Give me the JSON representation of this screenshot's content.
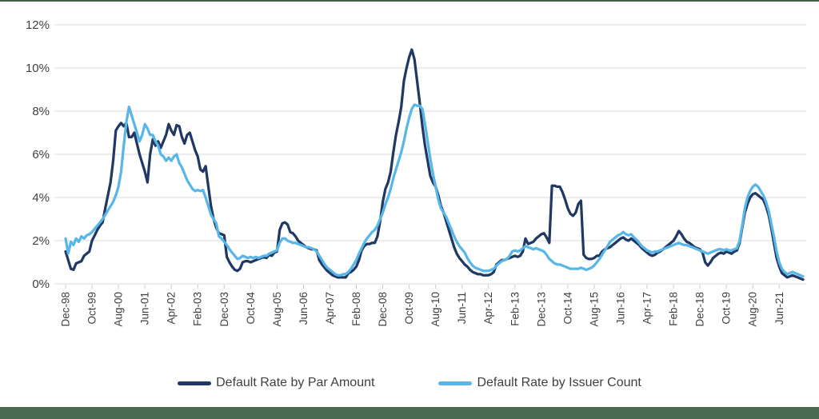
{
  "theme": {
    "background": "#ffffff",
    "top_border_color": "#40604a",
    "bottom_bar_color": "#4a6b52",
    "text_color": "#404040",
    "gridline_color": "#d9d9d9",
    "tick_color": "#c9c9c9"
  },
  "chart_data": {
    "type": "line",
    "title": "",
    "xlabel": "",
    "ylabel": "",
    "legend_position": "bottom",
    "grid": "horizontal-only",
    "x_axis": {
      "frequency": "monthly",
      "start_label": "Dec-98",
      "end_label": "Mar-22",
      "tick_interval_months": 10,
      "tick_labels": [
        "Dec-98",
        "Oct-99",
        "Aug-00",
        "Jun-01",
        "Apr-02",
        "Feb-03",
        "Dec-03",
        "Oct-04",
        "Aug-05",
        "Jun-06",
        "Apr-07",
        "Feb-08",
        "Dec-08",
        "Oct-09",
        "Aug-10",
        "Jun-11",
        "Apr-12",
        "Feb-13",
        "Dec-13",
        "Oct-14",
        "Aug-15",
        "Jun-16",
        "Apr-17",
        "Feb-18",
        "Dec-18",
        "Oct-19",
        "Aug-20",
        "Jun-21"
      ]
    },
    "y_axis": {
      "min": 0,
      "max": 12,
      "tick_step": 2,
      "tick_labels": [
        "0%",
        "2%",
        "4%",
        "6%",
        "8%",
        "10%",
        "12%"
      ]
    },
    "series": [
      {
        "name": "Default Rate by Par Amount",
        "color": "#1f3864",
        "values": [
          1.5,
          1.1,
          0.7,
          0.65,
          0.95,
          1.0,
          1.05,
          1.3,
          1.4,
          1.5,
          2.0,
          2.25,
          2.5,
          2.7,
          2.85,
          3.5,
          4.1,
          4.7,
          5.7,
          7.1,
          7.3,
          7.45,
          7.3,
          7.45,
          6.8,
          6.8,
          7.0,
          6.5,
          6.0,
          5.6,
          5.2,
          4.7,
          6.0,
          6.7,
          6.4,
          6.6,
          6.3,
          6.6,
          6.9,
          7.4,
          7.1,
          6.9,
          7.35,
          7.3,
          6.8,
          6.5,
          6.9,
          7.0,
          6.6,
          6.2,
          5.9,
          5.3,
          5.2,
          5.45,
          4.5,
          3.6,
          3.0,
          2.6,
          2.35,
          2.3,
          2.25,
          1.25,
          1.0,
          0.8,
          0.65,
          0.6,
          0.7,
          1.0,
          1.05,
          1.05,
          1.0,
          1.05,
          1.1,
          1.15,
          1.2,
          1.25,
          1.2,
          1.35,
          1.3,
          1.45,
          1.5,
          2.5,
          2.8,
          2.85,
          2.75,
          2.4,
          2.35,
          2.2,
          2.0,
          1.9,
          1.8,
          1.7,
          1.65,
          1.6,
          1.6,
          1.55,
          1.1,
          0.9,
          0.75,
          0.6,
          0.5,
          0.4,
          0.35,
          0.3,
          0.3,
          0.3,
          0.3,
          0.5,
          0.55,
          0.65,
          0.8,
          1.1,
          1.55,
          1.75,
          1.85,
          1.85,
          1.9,
          1.9,
          2.2,
          2.9,
          3.8,
          4.4,
          4.7,
          5.2,
          6.1,
          6.9,
          7.5,
          8.2,
          9.4,
          10.0,
          10.5,
          10.85,
          10.4,
          9.4,
          8.4,
          7.3,
          6.4,
          5.7,
          5.0,
          4.7,
          4.5,
          4.1,
          3.6,
          3.3,
          2.9,
          2.5,
          2.1,
          1.7,
          1.4,
          1.2,
          1.05,
          0.9,
          0.8,
          0.65,
          0.55,
          0.5,
          0.45,
          0.45,
          0.4,
          0.4,
          0.4,
          0.45,
          0.55,
          0.9,
          1.0,
          1.1,
          1.1,
          1.15,
          1.2,
          1.25,
          1.3,
          1.25,
          1.3,
          1.5,
          2.1,
          1.85,
          1.9,
          1.95,
          2.1,
          2.2,
          2.3,
          2.35,
          2.15,
          1.9,
          4.55,
          4.55,
          4.5,
          4.5,
          4.25,
          3.9,
          3.5,
          3.25,
          3.15,
          3.3,
          3.7,
          3.85,
          1.35,
          1.2,
          1.15,
          1.15,
          1.2,
          1.3,
          1.3,
          1.5,
          1.6,
          1.65,
          1.7,
          1.8,
          1.9,
          2.0,
          2.1,
          2.15,
          2.05,
          2.0,
          2.1,
          2.0,
          1.9,
          1.8,
          1.65,
          1.55,
          1.45,
          1.35,
          1.3,
          1.35,
          1.45,
          1.5,
          1.6,
          1.7,
          1.8,
          1.9,
          2.0,
          2.2,
          2.45,
          2.3,
          2.1,
          1.95,
          1.9,
          1.8,
          1.7,
          1.65,
          1.6,
          1.45,
          1.0,
          0.85,
          1.0,
          1.2,
          1.3,
          1.4,
          1.45,
          1.4,
          1.5,
          1.45,
          1.4,
          1.5,
          1.55,
          1.9,
          2.6,
          3.3,
          3.7,
          4.0,
          4.15,
          4.2,
          4.1,
          4.0,
          3.9,
          3.6,
          3.2,
          2.6,
          1.9,
          1.2,
          0.8,
          0.5,
          0.4,
          0.3,
          0.35,
          0.4,
          0.35,
          0.3,
          0.25,
          0.2
        ]
      },
      {
        "name": "Default Rate by Issuer Count",
        "color": "#58b6e8",
        "values": [
          2.1,
          1.4,
          1.95,
          1.8,
          2.1,
          1.95,
          2.2,
          2.1,
          2.25,
          2.3,
          2.4,
          2.55,
          2.7,
          2.85,
          3.0,
          3.2,
          3.4,
          3.6,
          3.8,
          4.1,
          4.5,
          5.2,
          6.4,
          7.5,
          8.2,
          7.8,
          7.4,
          7.0,
          6.6,
          6.9,
          7.4,
          7.2,
          6.9,
          6.9,
          6.6,
          6.4,
          6.0,
          5.9,
          5.7,
          5.85,
          5.7,
          5.9,
          6.0,
          5.6,
          5.4,
          5.1,
          4.8,
          4.6,
          4.4,
          4.3,
          4.35,
          4.3,
          4.35,
          4.0,
          3.6,
          3.2,
          3.0,
          2.8,
          2.2,
          2.1,
          1.95,
          1.8,
          1.6,
          1.45,
          1.3,
          1.15,
          1.2,
          1.3,
          1.25,
          1.2,
          1.25,
          1.2,
          1.25,
          1.2,
          1.25,
          1.3,
          1.3,
          1.4,
          1.45,
          1.5,
          1.55,
          1.9,
          2.1,
          2.1,
          2.0,
          1.95,
          1.9,
          1.9,
          1.85,
          1.8,
          1.75,
          1.7,
          1.7,
          1.65,
          1.6,
          1.5,
          1.3,
          1.1,
          0.9,
          0.75,
          0.65,
          0.55,
          0.45,
          0.4,
          0.4,
          0.45,
          0.45,
          0.55,
          0.7,
          0.9,
          1.1,
          1.4,
          1.65,
          1.9,
          2.1,
          2.25,
          2.4,
          2.5,
          2.7,
          3.0,
          3.3,
          3.7,
          4.0,
          4.4,
          4.9,
          5.3,
          5.7,
          6.1,
          6.6,
          7.2,
          7.7,
          8.1,
          8.3,
          8.25,
          8.25,
          8.1,
          7.4,
          6.6,
          5.8,
          5.1,
          4.5,
          3.9,
          3.5,
          3.3,
          3.1,
          2.8,
          2.5,
          2.2,
          1.95,
          1.75,
          1.6,
          1.45,
          1.2,
          1.0,
          0.85,
          0.75,
          0.7,
          0.65,
          0.6,
          0.6,
          0.6,
          0.65,
          0.7,
          0.85,
          0.95,
          1.05,
          1.1,
          1.15,
          1.3,
          1.5,
          1.55,
          1.5,
          1.55,
          1.65,
          1.75,
          1.7,
          1.65,
          1.6,
          1.65,
          1.6,
          1.55,
          1.5,
          1.35,
          1.15,
          1.05,
          0.95,
          0.9,
          0.9,
          0.85,
          0.8,
          0.75,
          0.7,
          0.7,
          0.7,
          0.7,
          0.75,
          0.7,
          0.65,
          0.7,
          0.75,
          0.85,
          1.0,
          1.15,
          1.35,
          1.55,
          1.75,
          1.95,
          2.05,
          2.15,
          2.25,
          2.3,
          2.4,
          2.3,
          2.25,
          2.3,
          2.15,
          2.05,
          1.9,
          1.75,
          1.65,
          1.55,
          1.5,
          1.45,
          1.5,
          1.5,
          1.55,
          1.6,
          1.65,
          1.7,
          1.75,
          1.8,
          1.85,
          1.9,
          1.85,
          1.8,
          1.8,
          1.75,
          1.7,
          1.65,
          1.6,
          1.55,
          1.5,
          1.45,
          1.4,
          1.45,
          1.5,
          1.55,
          1.6,
          1.6,
          1.55,
          1.6,
          1.55,
          1.55,
          1.6,
          1.65,
          2.0,
          2.7,
          3.5,
          4.0,
          4.3,
          4.5,
          4.6,
          4.5,
          4.3,
          4.1,
          3.8,
          3.4,
          2.8,
          2.2,
          1.5,
          1.0,
          0.7,
          0.55,
          0.45,
          0.5,
          0.55,
          0.5,
          0.45,
          0.4,
          0.35
        ]
      }
    ]
  }
}
